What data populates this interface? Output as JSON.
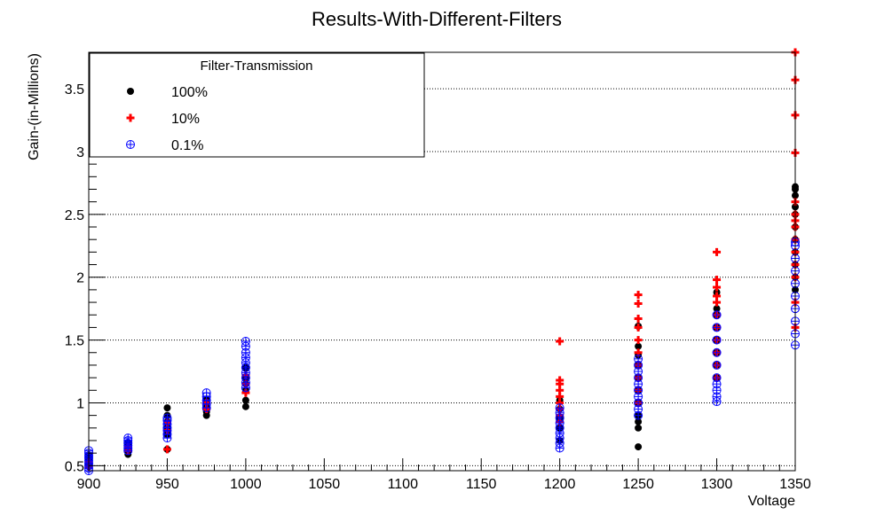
{
  "chart_data": {
    "type": "scatter",
    "title": "Results-With-Different-Filters",
    "xlabel": "Voltage",
    "ylabel": "Gain-(in-Millions)",
    "xlim": [
      900,
      1350
    ],
    "ylim": [
      0.46,
      3.79
    ],
    "xticks": [
      900,
      950,
      1000,
      1050,
      1100,
      1150,
      1200,
      1250,
      1300,
      1350
    ],
    "xtick_labels": [
      "900",
      "950",
      "1000",
      "1050",
      "1100",
      "1150",
      "1200",
      "1250",
      "1300",
      "1350"
    ],
    "yticks": [
      0.5,
      1,
      1.5,
      2,
      2.5,
      3,
      3.5
    ],
    "ytick_labels": [
      "0.5",
      "1",
      "1.5",
      "2",
      "2.5",
      "3",
      "3.5"
    ],
    "grid": "y-dotted",
    "legend": {
      "title": "Filter-Transmission",
      "placement": "top-left"
    },
    "series": [
      {
        "name": "100%",
        "color": "#000000",
        "marker": "filled-circle",
        "points": [
          [
            900,
            0.5
          ],
          [
            900,
            0.52
          ],
          [
            900,
            0.55
          ],
          [
            900,
            0.58
          ],
          [
            925,
            0.59
          ],
          [
            925,
            0.61
          ],
          [
            925,
            0.63
          ],
          [
            925,
            0.66
          ],
          [
            925,
            0.68
          ],
          [
            950,
            0.63
          ],
          [
            950,
            0.75
          ],
          [
            950,
            0.8
          ],
          [
            950,
            0.85
          ],
          [
            950,
            0.9
          ],
          [
            950,
            0.96
          ],
          [
            975,
            0.9
          ],
          [
            975,
            0.93
          ],
          [
            975,
            0.96
          ],
          [
            975,
            1.0
          ],
          [
            975,
            1.03
          ],
          [
            1000,
            0.97
          ],
          [
            1000,
            1.02
          ],
          [
            1000,
            1.1
          ],
          [
            1000,
            1.15
          ],
          [
            1000,
            1.2
          ],
          [
            1000,
            1.28
          ],
          [
            1200,
            0.7
          ],
          [
            1200,
            0.8
          ],
          [
            1200,
            0.88
          ],
          [
            1200,
            0.95
          ],
          [
            1200,
            1.02
          ],
          [
            1250,
            0.65
          ],
          [
            1250,
            0.8
          ],
          [
            1250,
            0.85
          ],
          [
            1250,
            0.9
          ],
          [
            1250,
            1.0
          ],
          [
            1250,
            1.1
          ],
          [
            1250,
            1.2
          ],
          [
            1250,
            1.3
          ],
          [
            1250,
            1.38
          ],
          [
            1250,
            1.45
          ],
          [
            1250,
            1.61
          ],
          [
            1300,
            1.2
          ],
          [
            1300,
            1.3
          ],
          [
            1300,
            1.4
          ],
          [
            1300,
            1.5
          ],
          [
            1300,
            1.6
          ],
          [
            1300,
            1.7
          ],
          [
            1300,
            1.75
          ],
          [
            1300,
            1.88
          ],
          [
            1350,
            1.9
          ],
          [
            1350,
            2.0
          ],
          [
            1350,
            2.1
          ],
          [
            1350,
            2.2
          ],
          [
            1350,
            2.3
          ],
          [
            1350,
            2.4
          ],
          [
            1350,
            2.5
          ],
          [
            1350,
            2.56
          ],
          [
            1350,
            2.65
          ],
          [
            1350,
            2.7
          ],
          [
            1350,
            2.72
          ]
        ]
      },
      {
        "name": "10%",
        "color": "#ff0000",
        "marker": "plus",
        "points": [
          [
            900,
            0.49
          ],
          [
            900,
            0.53
          ],
          [
            925,
            0.62
          ],
          [
            925,
            0.65
          ],
          [
            950,
            0.63
          ],
          [
            950,
            0.78
          ],
          [
            950,
            0.84
          ],
          [
            975,
            0.95
          ],
          [
            975,
            1.0
          ],
          [
            1000,
            1.08
          ],
          [
            1000,
            1.15
          ],
          [
            1000,
            1.22
          ],
          [
            1200,
            0.85
          ],
          [
            1200,
            0.9
          ],
          [
            1200,
            0.95
          ],
          [
            1200,
            1.0
          ],
          [
            1200,
            1.05
          ],
          [
            1200,
            1.1
          ],
          [
            1200,
            1.15
          ],
          [
            1200,
            1.18
          ],
          [
            1200,
            1.49
          ],
          [
            1250,
            1.0
          ],
          [
            1250,
            1.1
          ],
          [
            1250,
            1.2
          ],
          [
            1250,
            1.3
          ],
          [
            1250,
            1.4
          ],
          [
            1250,
            1.5
          ],
          [
            1250,
            1.6
          ],
          [
            1250,
            1.67
          ],
          [
            1250,
            1.79
          ],
          [
            1250,
            1.86
          ],
          [
            1300,
            1.2
          ],
          [
            1300,
            1.3
          ],
          [
            1300,
            1.4
          ],
          [
            1300,
            1.5
          ],
          [
            1300,
            1.6
          ],
          [
            1300,
            1.7
          ],
          [
            1300,
            1.8
          ],
          [
            1300,
            1.85
          ],
          [
            1300,
            1.92
          ],
          [
            1300,
            1.98
          ],
          [
            1300,
            2.2
          ],
          [
            1350,
            1.6
          ],
          [
            1350,
            1.8
          ],
          [
            1350,
            2.0
          ],
          [
            1350,
            2.1
          ],
          [
            1350,
            2.2
          ],
          [
            1350,
            2.3
          ],
          [
            1350,
            2.4
          ],
          [
            1350,
            2.45
          ],
          [
            1350,
            2.5
          ],
          [
            1350,
            2.6
          ],
          [
            1350,
            2.99
          ],
          [
            1350,
            3.29
          ],
          [
            1350,
            3.57
          ],
          [
            1350,
            3.79
          ]
        ]
      },
      {
        "name": "0.1%",
        "color": "#0000ff",
        "marker": "circle-plus",
        "points": [
          [
            900,
            0.46
          ],
          [
            900,
            0.48
          ],
          [
            900,
            0.5
          ],
          [
            900,
            0.52
          ],
          [
            900,
            0.54
          ],
          [
            900,
            0.56
          ],
          [
            900,
            0.58
          ],
          [
            900,
            0.6
          ],
          [
            900,
            0.62
          ],
          [
            925,
            0.62
          ],
          [
            925,
            0.64
          ],
          [
            925,
            0.66
          ],
          [
            925,
            0.68
          ],
          [
            925,
            0.7
          ],
          [
            925,
            0.72
          ],
          [
            950,
            0.72
          ],
          [
            950,
            0.75
          ],
          [
            950,
            0.78
          ],
          [
            950,
            0.8
          ],
          [
            950,
            0.83
          ],
          [
            950,
            0.86
          ],
          [
            950,
            0.88
          ],
          [
            975,
            0.96
          ],
          [
            975,
            0.99
          ],
          [
            975,
            1.02
          ],
          [
            975,
            1.05
          ],
          [
            975,
            1.08
          ],
          [
            1000,
            1.12
          ],
          [
            1000,
            1.16
          ],
          [
            1000,
            1.2
          ],
          [
            1000,
            1.24
          ],
          [
            1000,
            1.28
          ],
          [
            1000,
            1.32
          ],
          [
            1000,
            1.36
          ],
          [
            1000,
            1.4
          ],
          [
            1000,
            1.45
          ],
          [
            1000,
            1.49
          ],
          [
            1200,
            0.64
          ],
          [
            1200,
            0.68
          ],
          [
            1200,
            0.72
          ],
          [
            1200,
            0.76
          ],
          [
            1200,
            0.8
          ],
          [
            1200,
            0.84
          ],
          [
            1200,
            0.88
          ],
          [
            1200,
            0.92
          ],
          [
            1200,
            0.96
          ],
          [
            1250,
            0.9
          ],
          [
            1250,
            0.95
          ],
          [
            1250,
            1.0
          ],
          [
            1250,
            1.05
          ],
          [
            1250,
            1.1
          ],
          [
            1250,
            1.15
          ],
          [
            1250,
            1.2
          ],
          [
            1250,
            1.25
          ],
          [
            1250,
            1.3
          ],
          [
            1250,
            1.35
          ],
          [
            1300,
            1.01
          ],
          [
            1300,
            1.05
          ],
          [
            1300,
            1.1
          ],
          [
            1300,
            1.15
          ],
          [
            1300,
            1.2
          ],
          [
            1300,
            1.3
          ],
          [
            1300,
            1.4
          ],
          [
            1300,
            1.5
          ],
          [
            1300,
            1.6
          ],
          [
            1300,
            1.7
          ],
          [
            1350,
            1.46
          ],
          [
            1350,
            1.55
          ],
          [
            1350,
            1.65
          ],
          [
            1350,
            1.75
          ],
          [
            1350,
            1.85
          ],
          [
            1350,
            1.95
          ],
          [
            1350,
            2.05
          ],
          [
            1350,
            2.15
          ],
          [
            1350,
            2.25
          ],
          [
            1350,
            2.28
          ]
        ]
      }
    ]
  }
}
